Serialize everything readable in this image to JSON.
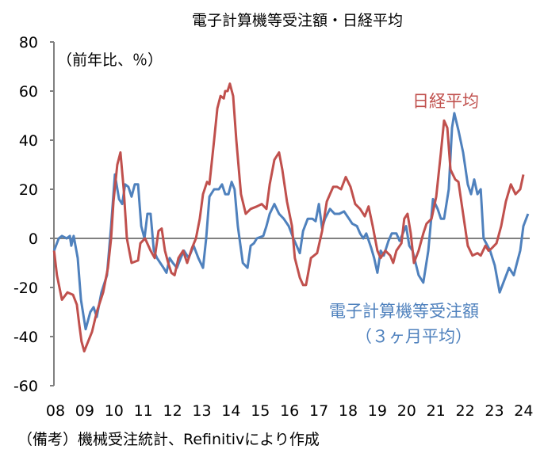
{
  "chart_data": {
    "type": "line",
    "title": "電子計算機等受注額・日経平均",
    "ylabel": "（前年比、％）",
    "xlabel": "",
    "ylim": [
      -60,
      80
    ],
    "yticks": [
      80,
      60,
      40,
      20,
      0,
      -20,
      -40,
      -60
    ],
    "xlim": [
      2008,
      2024
    ],
    "xtick_labels": [
      "08",
      "09",
      "10",
      "11",
      "12",
      "13",
      "14",
      "15",
      "16",
      "17",
      "18",
      "19",
      "20",
      "21",
      "22",
      "23",
      "24"
    ],
    "grid": false,
    "note": "（備考）機械受注統計、Refinitivにより作成",
    "series": [
      {
        "name": "日経平均",
        "color": "#c0504d",
        "points": [
          [
            2007.95,
            -5
          ],
          [
            2008.05,
            -15
          ],
          [
            2008.22,
            -25
          ],
          [
            2008.41,
            -22
          ],
          [
            2008.6,
            -23
          ],
          [
            2008.73,
            -27
          ],
          [
            2008.81,
            -35
          ],
          [
            2008.89,
            -42
          ],
          [
            2008.98,
            -46
          ],
          [
            2009.08,
            -43
          ],
          [
            2009.25,
            -38
          ],
          [
            2009.41,
            -30
          ],
          [
            2009.63,
            -22
          ],
          [
            2009.79,
            -12
          ],
          [
            2009.9,
            0
          ],
          [
            2009.98,
            15
          ],
          [
            2010.11,
            30
          ],
          [
            2010.22,
            35
          ],
          [
            2010.33,
            20
          ],
          [
            2010.44,
            0
          ],
          [
            2010.6,
            -10
          ],
          [
            2010.82,
            -9
          ],
          [
            2010.9,
            -2
          ],
          [
            2011.06,
            0
          ],
          [
            2011.25,
            -5
          ],
          [
            2011.39,
            -8
          ],
          [
            2011.52,
            3
          ],
          [
            2011.63,
            4
          ],
          [
            2011.74,
            -5
          ],
          [
            2011.85,
            -10
          ],
          [
            2011.96,
            -14
          ],
          [
            2012.07,
            -15
          ],
          [
            2012.2,
            -8
          ],
          [
            2012.36,
            -5
          ],
          [
            2012.5,
            -10
          ],
          [
            2012.66,
            -4
          ],
          [
            2012.8,
            0
          ],
          [
            2012.93,
            8
          ],
          [
            2013.04,
            18
          ],
          [
            2013.18,
            23
          ],
          [
            2013.26,
            22
          ],
          [
            2013.42,
            40
          ],
          [
            2013.53,
            53
          ],
          [
            2013.64,
            58
          ],
          [
            2013.75,
            57
          ],
          [
            2013.8,
            60
          ],
          [
            2013.88,
            60
          ],
          [
            2013.96,
            63
          ],
          [
            2014.07,
            58
          ],
          [
            2014.18,
            40
          ],
          [
            2014.34,
            18
          ],
          [
            2014.5,
            10
          ],
          [
            2014.67,
            12
          ],
          [
            2014.88,
            13
          ],
          [
            2015.05,
            14
          ],
          [
            2015.21,
            12
          ],
          [
            2015.32,
            22
          ],
          [
            2015.48,
            32
          ],
          [
            2015.64,
            35
          ],
          [
            2015.75,
            28
          ],
          [
            2015.91,
            15
          ],
          [
            2016.08,
            5
          ],
          [
            2016.18,
            -8
          ],
          [
            2016.35,
            -16
          ],
          [
            2016.46,
            -19
          ],
          [
            2016.56,
            -19
          ],
          [
            2016.73,
            -8
          ],
          [
            2016.94,
            -6
          ],
          [
            2017.11,
            3
          ],
          [
            2017.27,
            15
          ],
          [
            2017.38,
            18
          ],
          [
            2017.49,
            21
          ],
          [
            2017.62,
            21
          ],
          [
            2017.76,
            20
          ],
          [
            2017.92,
            25
          ],
          [
            2018.08,
            21
          ],
          [
            2018.24,
            14
          ],
          [
            2018.41,
            12
          ],
          [
            2018.57,
            9
          ],
          [
            2018.7,
            13
          ],
          [
            2018.84,
            5
          ],
          [
            2019.0,
            -5
          ],
          [
            2019.11,
            -8
          ],
          [
            2019.27,
            -5
          ],
          [
            2019.44,
            -7
          ],
          [
            2019.54,
            -10
          ],
          [
            2019.65,
            -5
          ],
          [
            2019.82,
            -2
          ],
          [
            2019.92,
            8
          ],
          [
            2020.03,
            10
          ],
          [
            2020.14,
            2
          ],
          [
            2020.25,
            -10
          ],
          [
            2020.41,
            -5
          ],
          [
            2020.57,
            2
          ],
          [
            2020.68,
            6
          ],
          [
            2020.85,
            8
          ],
          [
            2021.01,
            17
          ],
          [
            2021.17,
            35
          ],
          [
            2021.28,
            48
          ],
          [
            2021.39,
            45
          ],
          [
            2021.5,
            28
          ],
          [
            2021.66,
            24
          ],
          [
            2021.77,
            23
          ],
          [
            2021.93,
            10
          ],
          [
            2022.09,
            -3
          ],
          [
            2022.25,
            -7
          ],
          [
            2022.42,
            -6
          ],
          [
            2022.53,
            -7
          ],
          [
            2022.69,
            -3
          ],
          [
            2022.8,
            -5
          ],
          [
            2022.91,
            -4
          ],
          [
            2023.07,
            -2
          ],
          [
            2023.23,
            5
          ],
          [
            2023.39,
            15
          ],
          [
            2023.56,
            22
          ],
          [
            2023.72,
            18
          ],
          [
            2023.88,
            20
          ],
          [
            2023.99,
            26
          ]
        ]
      },
      {
        "name": "電子計算機等受注額",
        "name_line2": "（３ヶ月平均）",
        "color": "#4f81bd",
        "points": [
          [
            2007.95,
            -5
          ],
          [
            2008.11,
            0
          ],
          [
            2008.22,
            1
          ],
          [
            2008.38,
            0
          ],
          [
            2008.49,
            1
          ],
          [
            2008.54,
            -3
          ],
          [
            2008.62,
            1
          ],
          [
            2008.76,
            -8
          ],
          [
            2008.87,
            -25
          ],
          [
            2009.03,
            -37
          ],
          [
            2009.19,
            -30
          ],
          [
            2009.3,
            -28
          ],
          [
            2009.41,
            -32
          ],
          [
            2009.57,
            -22
          ],
          [
            2009.76,
            -15
          ],
          [
            2009.9,
            5
          ],
          [
            2010.03,
            26
          ],
          [
            2010.17,
            16
          ],
          [
            2010.28,
            14
          ],
          [
            2010.38,
            22
          ],
          [
            2010.49,
            21
          ],
          [
            2010.6,
            17
          ],
          [
            2010.71,
            22
          ],
          [
            2010.82,
            22
          ],
          [
            2010.93,
            5
          ],
          [
            2011.04,
            0
          ],
          [
            2011.14,
            10
          ],
          [
            2011.25,
            10
          ],
          [
            2011.36,
            -5
          ],
          [
            2011.47,
            -8
          ],
          [
            2011.58,
            -10
          ],
          [
            2011.69,
            -12
          ],
          [
            2011.79,
            -14
          ],
          [
            2011.9,
            -8
          ],
          [
            2012.01,
            -10
          ],
          [
            2012.15,
            -12
          ],
          [
            2012.28,
            -8
          ],
          [
            2012.39,
            -5
          ],
          [
            2012.55,
            -8
          ],
          [
            2012.72,
            -3
          ],
          [
            2012.88,
            -8
          ],
          [
            2013.04,
            -12
          ],
          [
            2013.15,
            0
          ],
          [
            2013.26,
            17
          ],
          [
            2013.42,
            20
          ],
          [
            2013.58,
            20
          ],
          [
            2013.69,
            22
          ],
          [
            2013.8,
            18
          ],
          [
            2013.91,
            18
          ],
          [
            2014.02,
            23
          ],
          [
            2014.12,
            20
          ],
          [
            2014.23,
            5
          ],
          [
            2014.4,
            -10
          ],
          [
            2014.56,
            -12
          ],
          [
            2014.67,
            -3
          ],
          [
            2014.78,
            -2
          ],
          [
            2014.88,
            0
          ],
          [
            2015.1,
            1
          ],
          [
            2015.21,
            5
          ],
          [
            2015.32,
            10
          ],
          [
            2015.48,
            14
          ],
          [
            2015.64,
            10
          ],
          [
            2015.8,
            8
          ],
          [
            2015.97,
            5
          ],
          [
            2016.13,
            0
          ],
          [
            2016.24,
            -3
          ],
          [
            2016.35,
            -6
          ],
          [
            2016.46,
            3
          ],
          [
            2016.62,
            8
          ],
          [
            2016.78,
            8
          ],
          [
            2016.89,
            7
          ],
          [
            2017.0,
            14
          ],
          [
            2017.11,
            4
          ],
          [
            2017.21,
            8
          ],
          [
            2017.38,
            12
          ],
          [
            2017.54,
            10
          ],
          [
            2017.7,
            10
          ],
          [
            2017.86,
            11
          ],
          [
            2018.03,
            8
          ],
          [
            2018.14,
            6
          ],
          [
            2018.3,
            5
          ],
          [
            2018.41,
            2
          ],
          [
            2018.52,
            0
          ],
          [
            2018.62,
            2
          ],
          [
            2018.79,
            -4
          ],
          [
            2018.89,
            -8
          ],
          [
            2019.0,
            -14
          ],
          [
            2019.11,
            -5
          ],
          [
            2019.22,
            -7
          ],
          [
            2019.38,
            -1
          ],
          [
            2019.49,
            2
          ],
          [
            2019.65,
            2
          ],
          [
            2019.76,
            -1
          ],
          [
            2019.87,
            2
          ],
          [
            2019.98,
            5
          ],
          [
            2020.09,
            -3
          ],
          [
            2020.2,
            -5
          ],
          [
            2020.41,
            -15
          ],
          [
            2020.57,
            -18
          ],
          [
            2020.74,
            -5
          ],
          [
            2020.9,
            16
          ],
          [
            2021.06,
            12
          ],
          [
            2021.17,
            8
          ],
          [
            2021.28,
            8
          ],
          [
            2021.44,
            20
          ],
          [
            2021.55,
            45
          ],
          [
            2021.63,
            51
          ],
          [
            2021.77,
            44
          ],
          [
            2021.93,
            35
          ],
          [
            2022.09,
            22
          ],
          [
            2022.2,
            18
          ],
          [
            2022.31,
            24
          ],
          [
            2022.42,
            18
          ],
          [
            2022.53,
            20
          ],
          [
            2022.63,
            0
          ],
          [
            2022.85,
            -5
          ],
          [
            2023.01,
            -11
          ],
          [
            2023.18,
            -22
          ],
          [
            2023.34,
            -17
          ],
          [
            2023.5,
            -12
          ],
          [
            2023.66,
            -15
          ],
          [
            2023.77,
            -10
          ],
          [
            2023.88,
            -5
          ],
          [
            2023.99,
            5
          ],
          [
            2024.15,
            10
          ]
        ]
      }
    ]
  }
}
